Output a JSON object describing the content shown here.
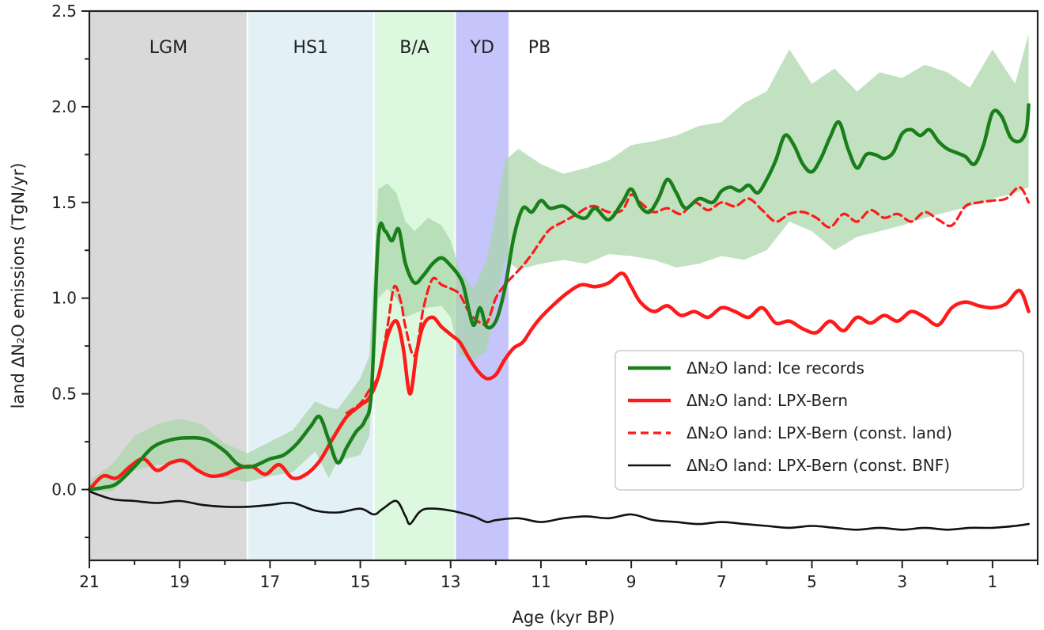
{
  "chart_data": {
    "type": "line",
    "xlabel": "Age (kyr BP)",
    "ylabel": "land ΔN₂O emissions (TgN/yr)",
    "xlim": [
      21,
      0
    ],
    "ylim": [
      -0.37,
      2.5
    ],
    "x_ticks": [
      21,
      19,
      17,
      15,
      13,
      11,
      9,
      7,
      5,
      3,
      1
    ],
    "y_ticks": [
      0.0,
      0.5,
      1.0,
      1.5,
      2.0,
      2.5
    ],
    "y_tick_labels": [
      "0.0",
      "0.5",
      "1.0",
      "1.5",
      "2.0",
      "2.5"
    ],
    "grid": false,
    "legend_position": "center-right",
    "periods": [
      {
        "label": "LGM",
        "start": 21.0,
        "end": 17.5,
        "color": "#d9d9d9"
      },
      {
        "label": "HS1",
        "start": 17.5,
        "end": 14.7,
        "color": "#e3f1f7"
      },
      {
        "label": "B/A",
        "start": 14.7,
        "end": 12.9,
        "color": "#dcf8de"
      },
      {
        "label": "YD",
        "start": 12.9,
        "end": 11.7,
        "color": "#c5c5fb"
      },
      {
        "label": "PB",
        "start": 11.7,
        "end": 0.0,
        "color": "#ffffff"
      }
    ],
    "uncertainty_band": {
      "series": "ΔN₂O land: Ice records",
      "color": "#a9d6a9",
      "x": [
        21.0,
        20.5,
        20.0,
        19.5,
        19.0,
        18.5,
        18.0,
        17.5,
        17.0,
        16.5,
        16.0,
        15.7,
        15.5,
        15.0,
        14.8,
        14.6,
        14.4,
        14.2,
        14.0,
        13.8,
        13.5,
        13.2,
        13.0,
        12.8,
        12.5,
        12.2,
        12.0,
        11.8,
        11.5,
        11.0,
        10.5,
        10.0,
        9.5,
        9.0,
        8.5,
        8.0,
        7.5,
        7.0,
        6.5,
        6.0,
        5.5,
        5.0,
        4.5,
        4.0,
        3.5,
        3.0,
        2.5,
        2.0,
        1.5,
        1.0,
        0.5,
        0.2
      ],
      "upper": [
        0.05,
        0.13,
        0.28,
        0.34,
        0.37,
        0.34,
        0.24,
        0.19,
        0.25,
        0.31,
        0.46,
        0.43,
        0.42,
        0.58,
        0.7,
        1.57,
        1.6,
        1.55,
        1.4,
        1.35,
        1.42,
        1.38,
        1.3,
        1.15,
        1.05,
        1.2,
        1.45,
        1.72,
        1.78,
        1.7,
        1.65,
        1.68,
        1.72,
        1.8,
        1.82,
        1.85,
        1.9,
        1.92,
        2.02,
        2.08,
        2.3,
        2.12,
        2.2,
        2.08,
        2.18,
        2.15,
        2.22,
        2.18,
        2.1,
        2.3,
        2.12,
        2.38
      ],
      "lower": [
        -0.01,
        -0.01,
        0.1,
        0.13,
        0.14,
        0.1,
        0.06,
        0.04,
        0.07,
        0.09,
        0.2,
        0.06,
        0.15,
        0.18,
        0.28,
        1.0,
        1.05,
        1.0,
        0.9,
        0.92,
        0.95,
        0.96,
        0.9,
        0.7,
        0.68,
        0.72,
        0.98,
        1.2,
        1.15,
        1.18,
        1.2,
        1.18,
        1.23,
        1.22,
        1.2,
        1.16,
        1.18,
        1.22,
        1.2,
        1.25,
        1.4,
        1.35,
        1.25,
        1.32,
        1.35,
        1.38,
        1.42,
        1.45,
        1.48,
        1.52,
        1.55,
        1.58
      ]
    },
    "series": [
      {
        "name": "ΔN₂O land: Ice records",
        "color": "#1a7f1a",
        "width": 4.5,
        "dash": "solid",
        "x": [
          21.0,
          20.7,
          20.4,
          20.0,
          19.6,
          19.2,
          18.8,
          18.4,
          18.0,
          17.7,
          17.4,
          17.0,
          16.7,
          16.4,
          16.1,
          15.9,
          15.7,
          15.5,
          15.3,
          15.1,
          14.9,
          14.75,
          14.6,
          14.45,
          14.3,
          14.15,
          14.0,
          13.8,
          13.6,
          13.4,
          13.2,
          13.0,
          12.8,
          12.7,
          12.5,
          12.35,
          12.2,
          12.0,
          11.8,
          11.6,
          11.4,
          11.2,
          11.0,
          10.8,
          10.5,
          10.2,
          10.0,
          9.8,
          9.5,
          9.2,
          9.0,
          8.8,
          8.6,
          8.4,
          8.2,
          8.0,
          7.8,
          7.5,
          7.2,
          7.0,
          6.8,
          6.6,
          6.4,
          6.2,
          6.0,
          5.8,
          5.6,
          5.4,
          5.2,
          5.0,
          4.8,
          4.6,
          4.4,
          4.2,
          4.0,
          3.8,
          3.6,
          3.4,
          3.2,
          3.0,
          2.8,
          2.6,
          2.4,
          2.2,
          2.0,
          1.8,
          1.6,
          1.4,
          1.2,
          1.0,
          0.8,
          0.6,
          0.4,
          0.25,
          0.2
        ],
        "y": [
          0.0,
          0.01,
          0.03,
          0.12,
          0.22,
          0.26,
          0.27,
          0.26,
          0.2,
          0.13,
          0.12,
          0.16,
          0.18,
          0.24,
          0.33,
          0.38,
          0.26,
          0.14,
          0.22,
          0.3,
          0.36,
          0.52,
          1.32,
          1.35,
          1.3,
          1.36,
          1.18,
          1.08,
          1.12,
          1.18,
          1.21,
          1.17,
          1.11,
          1.05,
          0.86,
          0.95,
          0.85,
          0.88,
          1.05,
          1.32,
          1.47,
          1.45,
          1.51,
          1.47,
          1.48,
          1.43,
          1.42,
          1.47,
          1.41,
          1.5,
          1.57,
          1.48,
          1.45,
          1.52,
          1.62,
          1.55,
          1.47,
          1.52,
          1.5,
          1.56,
          1.58,
          1.56,
          1.59,
          1.55,
          1.62,
          1.72,
          1.85,
          1.8,
          1.7,
          1.66,
          1.73,
          1.84,
          1.92,
          1.78,
          1.68,
          1.75,
          1.75,
          1.73,
          1.76,
          1.86,
          1.88,
          1.85,
          1.88,
          1.82,
          1.78,
          1.76,
          1.74,
          1.7,
          1.8,
          1.97,
          1.95,
          1.84,
          1.82,
          1.88,
          2.01
        ]
      },
      {
        "name": "ΔN₂O land: LPX-Bern",
        "color": "#ff1a1a",
        "width": 4.5,
        "dash": "solid",
        "x": [
          21.0,
          20.7,
          20.4,
          20.1,
          19.8,
          19.5,
          19.2,
          18.9,
          18.6,
          18.3,
          18.0,
          17.7,
          17.4,
          17.1,
          16.8,
          16.5,
          16.2,
          15.9,
          15.6,
          15.3,
          15.0,
          14.8,
          14.6,
          14.4,
          14.2,
          14.05,
          13.9,
          13.75,
          13.6,
          13.4,
          13.2,
          13.0,
          12.8,
          12.6,
          12.4,
          12.2,
          12.0,
          11.8,
          11.6,
          11.4,
          11.2,
          11.0,
          10.7,
          10.4,
          10.1,
          9.8,
          9.5,
          9.2,
          9.0,
          8.8,
          8.5,
          8.2,
          7.9,
          7.6,
          7.3,
          7.0,
          6.7,
          6.4,
          6.1,
          5.8,
          5.5,
          5.2,
          4.9,
          4.6,
          4.3,
          4.0,
          3.7,
          3.4,
          3.1,
          2.8,
          2.5,
          2.2,
          1.9,
          1.6,
          1.3,
          1.0,
          0.7,
          0.4,
          0.2
        ],
        "y": [
          0.0,
          0.07,
          0.06,
          0.12,
          0.16,
          0.1,
          0.14,
          0.15,
          0.1,
          0.07,
          0.08,
          0.11,
          0.12,
          0.08,
          0.13,
          0.06,
          0.08,
          0.15,
          0.27,
          0.38,
          0.44,
          0.48,
          0.59,
          0.8,
          0.88,
          0.74,
          0.5,
          0.72,
          0.86,
          0.9,
          0.85,
          0.81,
          0.77,
          0.69,
          0.62,
          0.58,
          0.6,
          0.68,
          0.74,
          0.77,
          0.84,
          0.9,
          0.97,
          1.03,
          1.07,
          1.06,
          1.08,
          1.13,
          1.06,
          0.98,
          0.93,
          0.96,
          0.91,
          0.93,
          0.9,
          0.95,
          0.93,
          0.9,
          0.95,
          0.87,
          0.88,
          0.84,
          0.82,
          0.88,
          0.83,
          0.9,
          0.87,
          0.91,
          0.88,
          0.93,
          0.9,
          0.86,
          0.95,
          0.98,
          0.96,
          0.95,
          0.97,
          1.04,
          0.93
        ]
      },
      {
        "name": "ΔN₂O land: LPX-Bern (const. land)",
        "color": "#ff1a1a",
        "width": 3.2,
        "dash": "dashed",
        "x": [
          15.3,
          15.0,
          14.8,
          14.6,
          14.4,
          14.25,
          14.1,
          14.0,
          13.8,
          13.6,
          13.4,
          13.2,
          13.0,
          12.8,
          12.6,
          12.4,
          12.2,
          12.0,
          11.8,
          11.6,
          11.4,
          11.2,
          11.0,
          10.8,
          10.5,
          10.2,
          10.0,
          9.8,
          9.5,
          9.2,
          9.0,
          8.8,
          8.5,
          8.2,
          7.9,
          7.6,
          7.3,
          7.0,
          6.7,
          6.4,
          6.1,
          5.8,
          5.5,
          5.2,
          4.9,
          4.6,
          4.3,
          4.0,
          3.7,
          3.4,
          3.1,
          2.8,
          2.5,
          2.2,
          1.9,
          1.6,
          1.3,
          1.0,
          0.7,
          0.4,
          0.2
        ],
        "y": [
          0.4,
          0.45,
          0.52,
          0.6,
          0.85,
          1.06,
          0.98,
          0.85,
          0.7,
          0.95,
          1.1,
          1.07,
          1.05,
          1.02,
          0.93,
          0.88,
          0.87,
          1.0,
          1.07,
          1.12,
          1.17,
          1.23,
          1.3,
          1.36,
          1.4,
          1.44,
          1.47,
          1.48,
          1.45,
          1.46,
          1.54,
          1.5,
          1.45,
          1.47,
          1.44,
          1.5,
          1.46,
          1.5,
          1.48,
          1.52,
          1.46,
          1.4,
          1.44,
          1.45,
          1.42,
          1.37,
          1.44,
          1.4,
          1.46,
          1.42,
          1.44,
          1.4,
          1.45,
          1.41,
          1.38,
          1.48,
          1.5,
          1.51,
          1.52,
          1.58,
          1.5
        ]
      },
      {
        "name": "ΔN₂O land: LPX-Bern (const. BNF)",
        "color": "#111111",
        "width": 2.6,
        "dash": "solid",
        "x": [
          21.0,
          20.5,
          20.0,
          19.5,
          19.0,
          18.5,
          18.0,
          17.5,
          17.0,
          16.5,
          16.0,
          15.5,
          15.0,
          14.7,
          14.5,
          14.2,
          14.0,
          13.9,
          13.7,
          13.5,
          13.0,
          12.5,
          12.2,
          12.0,
          11.5,
          11.0,
          10.5,
          10.0,
          9.5,
          9.0,
          8.5,
          8.0,
          7.5,
          7.0,
          6.5,
          6.0,
          5.5,
          5.0,
          4.5,
          4.0,
          3.5,
          3.0,
          2.5,
          2.0,
          1.5,
          1.0,
          0.5,
          0.2
        ],
        "y": [
          -0.01,
          -0.05,
          -0.06,
          -0.07,
          -0.06,
          -0.08,
          -0.09,
          -0.09,
          -0.08,
          -0.07,
          -0.11,
          -0.12,
          -0.1,
          -0.13,
          -0.1,
          -0.06,
          -0.14,
          -0.18,
          -0.12,
          -0.1,
          -0.11,
          -0.14,
          -0.17,
          -0.16,
          -0.15,
          -0.17,
          -0.15,
          -0.14,
          -0.15,
          -0.13,
          -0.16,
          -0.17,
          -0.18,
          -0.17,
          -0.18,
          -0.19,
          -0.2,
          -0.19,
          -0.2,
          -0.21,
          -0.2,
          -0.21,
          -0.2,
          -0.21,
          -0.2,
          -0.2,
          -0.19,
          -0.18
        ]
      }
    ]
  }
}
